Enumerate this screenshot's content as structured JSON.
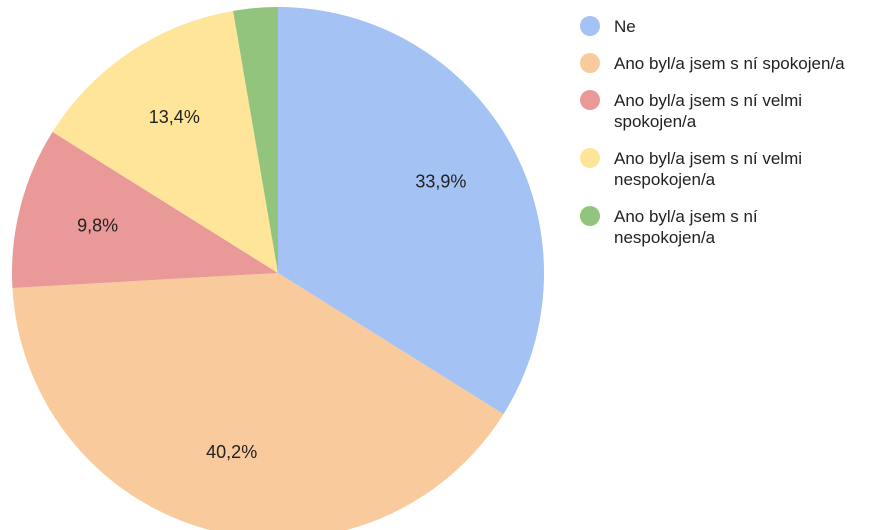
{
  "chart_data": {
    "type": "pie",
    "categories": [
      "Ne",
      "Ano byl/a jsem s ní spokojen/a",
      "Ano byl/a jsem s ní velmi spokojen/a",
      "Ano byl/a jsem s ní velmi nespokojen/a",
      "Ano byl/a jsem s ní nespokojen/a"
    ],
    "values": [
      33.9,
      40.2,
      9.8,
      13.4,
      2.7
    ],
    "value_labels": [
      "33,9%",
      "40,2%",
      "9,8%",
      "13,4%",
      null
    ],
    "colors": [
      "#a4c2f4",
      "#f9cb9c",
      "#ea9999",
      "#ffe599",
      "#93c47d"
    ],
    "legend": "right"
  }
}
